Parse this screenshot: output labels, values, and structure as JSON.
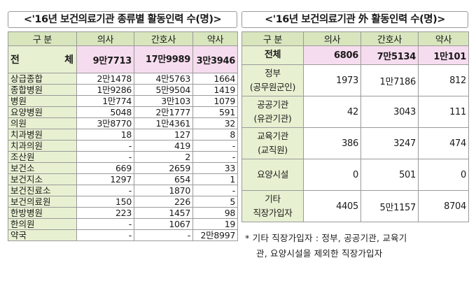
{
  "left": {
    "title": "<'16년 보건의료기관 종류별 활동인력 수(명)>",
    "headers": [
      "구 분",
      "의사",
      "간호사",
      "약사"
    ],
    "total": {
      "label": "전 체",
      "doctor": "9만7713",
      "nurse": "17만9989",
      "pharm": "3만3946"
    },
    "rows": [
      {
        "label": "상급종합",
        "doctor": "2만1478",
        "nurse": "4만5763",
        "pharm": "1664"
      },
      {
        "label": "종합병원",
        "doctor": "1만9286",
        "nurse": "5만9504",
        "pharm": "1419"
      },
      {
        "label": "병원",
        "doctor": "1만774",
        "nurse": "3만103",
        "pharm": "1079"
      },
      {
        "label": "요양병원",
        "doctor": "5048",
        "nurse": "2만1777",
        "pharm": "591"
      },
      {
        "label": "의원",
        "doctor": "3만8770",
        "nurse": "1만4361",
        "pharm": "32"
      },
      {
        "label": "치과병원",
        "doctor": "18",
        "nurse": "127",
        "pharm": "8"
      },
      {
        "label": "치과의원",
        "doctor": "-",
        "nurse": "419",
        "pharm": "-"
      },
      {
        "label": "조산원",
        "doctor": "-",
        "nurse": "2",
        "pharm": "-"
      },
      {
        "label": "보건소",
        "doctor": "669",
        "nurse": "2659",
        "pharm": "33"
      },
      {
        "label": "보건지소",
        "doctor": "1297",
        "nurse": "654",
        "pharm": "1"
      },
      {
        "label": "보건진료소",
        "doctor": "-",
        "nurse": "1870",
        "pharm": "-"
      },
      {
        "label": "보건의료원",
        "doctor": "150",
        "nurse": "226",
        "pharm": "5"
      },
      {
        "label": "한방병원",
        "doctor": "223",
        "nurse": "1457",
        "pharm": "98"
      },
      {
        "label": "한의원",
        "doctor": "-",
        "nurse": "1067",
        "pharm": "19"
      },
      {
        "label": "약국",
        "doctor": "-",
        "nurse": "-",
        "pharm": "2만8997"
      }
    ]
  },
  "right": {
    "title": "<'16년 보건의료기관 外 활동인력 수(명)>",
    "headers": [
      "구 분",
      "의사",
      "간호사",
      "약사"
    ],
    "total": {
      "label": "전체",
      "doctor": "6806",
      "nurse": "7만5134",
      "pharm": "1만101"
    },
    "rows": [
      {
        "label1": "정부",
        "label2": "(공무원군인)",
        "doctor": "1973",
        "nurse": "1만7186",
        "pharm": "812"
      },
      {
        "label1": "공공기관",
        "label2": "(유관기관)",
        "doctor": "42",
        "nurse": "3043",
        "pharm": "111"
      },
      {
        "label1": "교육기관",
        "label2": "(교직원)",
        "doctor": "386",
        "nurse": "3247",
        "pharm": "474"
      },
      {
        "label1": "요양시설",
        "label2": "",
        "doctor": "0",
        "nurse": "501",
        "pharm": "0"
      },
      {
        "label1": "기타",
        "label2": "직장가입자",
        "doctor": "4405",
        "nurse": "5만1157",
        "pharm": "8704"
      }
    ]
  },
  "note": {
    "line1": "* 기타 직장가입자 : 정부, 공공기관, 교육기",
    "line2": "관, 요양시설을 제외한 직장가입자"
  },
  "colors": {
    "header_bg": "#d8e5bd",
    "label_bg": "#e7f0d1",
    "total_bg": "#f6dcef",
    "border": "#9a9a9a"
  }
}
